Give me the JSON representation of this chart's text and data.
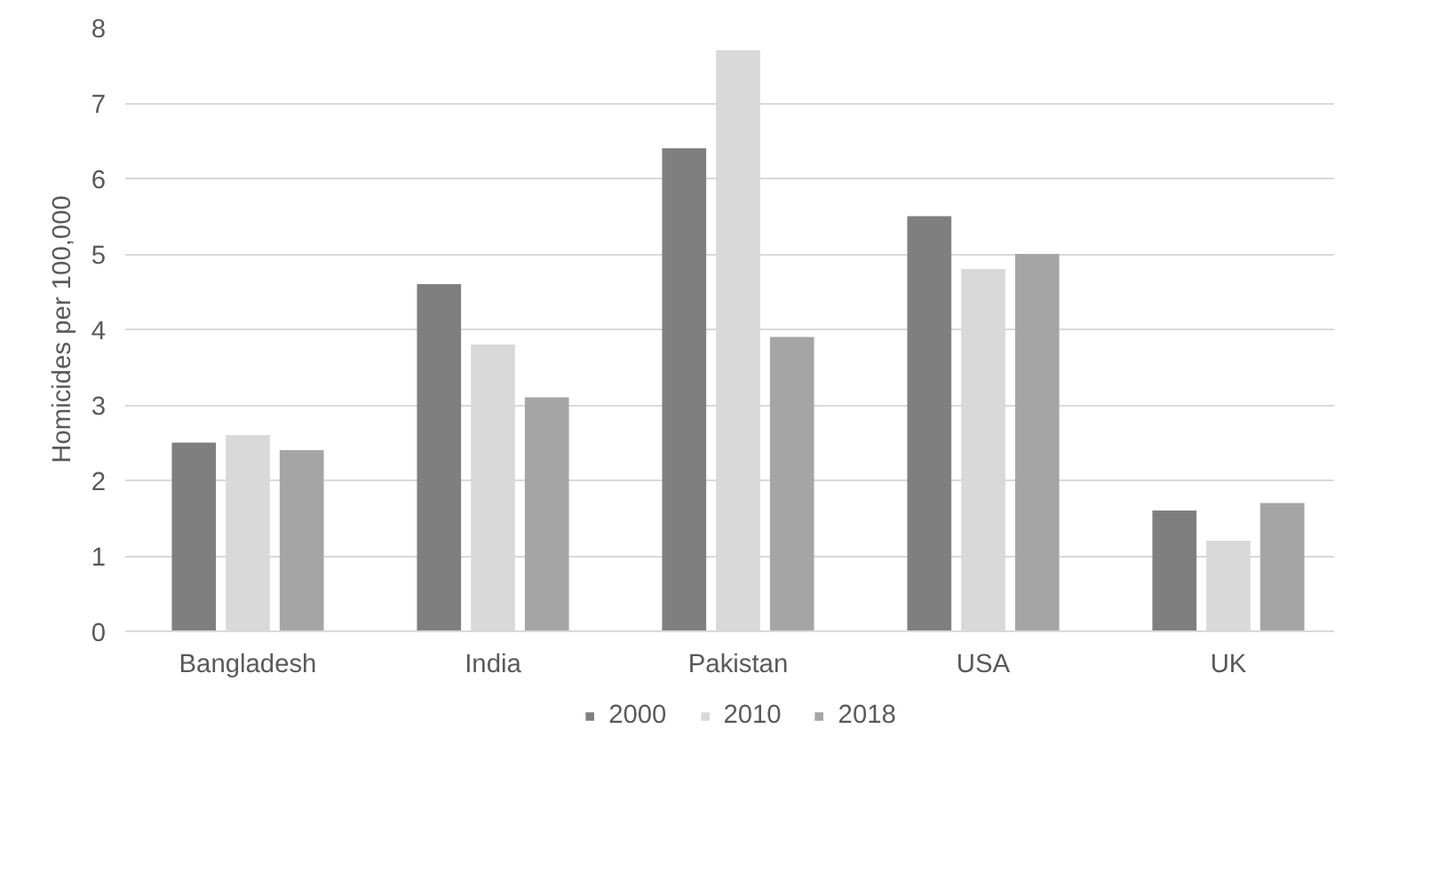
{
  "chart_data": {
    "type": "bar",
    "ylabel": "Homicides per 100,000",
    "categories": [
      "Bangladesh",
      "India",
      "Pakistan",
      "USA",
      "UK"
    ],
    "series": [
      {
        "name": "2000",
        "color": "#7f7f7f",
        "values": [
          2.5,
          4.6,
          6.4,
          5.5,
          1.6
        ]
      },
      {
        "name": "2010",
        "color": "#d9d9d9",
        "values": [
          2.6,
          3.8,
          7.7,
          4.8,
          1.2
        ]
      },
      {
        "name": "2018",
        "color": "#a5a5a5",
        "values": [
          2.4,
          3.1,
          3.9,
          5.0,
          1.7
        ]
      }
    ],
    "ylim": [
      0,
      8
    ],
    "yticks": [
      0,
      1,
      2,
      3,
      4,
      5,
      6,
      7,
      8
    ],
    "grid": "y",
    "legend": "bottom"
  }
}
